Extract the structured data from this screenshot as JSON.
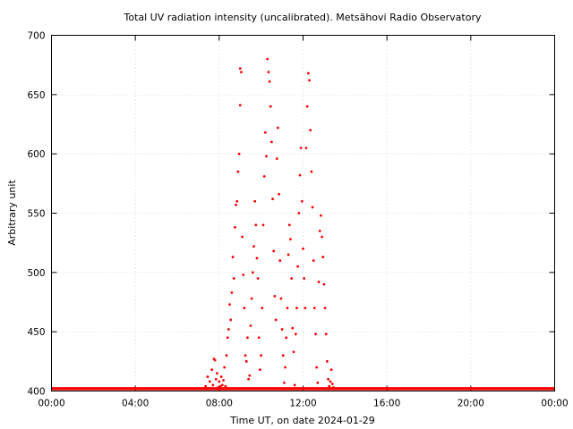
{
  "colors": {
    "series": "#ff0000",
    "axis": "#000000",
    "grid": "#d9d9d9",
    "background": "#ffffff"
  },
  "chart_data": {
    "type": "scatter",
    "title": "Total UV radiation intensity (uncalibrated). Metsähovi Radio Observatory",
    "xlabel": "Time UT, on date 2024-01-29",
    "ylabel": "Arbitrary unit",
    "xlim": [
      0,
      24
    ],
    "ylim": [
      400,
      700
    ],
    "grid": true,
    "legend": "none",
    "x_ticks": [
      0,
      4,
      8,
      12,
      16,
      20,
      24
    ],
    "x_tick_labels": [
      "00:00",
      "04:00",
      "08:00",
      "12:00",
      "16:00",
      "20:00",
      "00:00"
    ],
    "y_ticks": [
      400,
      450,
      500,
      550,
      600,
      650,
      700
    ],
    "y_tick_labels": [
      "400",
      "450",
      "500",
      "550",
      "600",
      "650",
      "700"
    ],
    "baseline": {
      "value": 402,
      "from_hour": 0,
      "to_hour": 24
    },
    "series": [
      {
        "color": "#ff0000",
        "x_unit": "hours UT",
        "points": [
          [
            7.35,
            404
          ],
          [
            7.45,
            412
          ],
          [
            7.55,
            408
          ],
          [
            7.65,
            418
          ],
          [
            7.7,
            405
          ],
          [
            7.75,
            427
          ],
          [
            7.8,
            426
          ],
          [
            7.85,
            410
          ],
          [
            7.9,
            415
          ],
          [
            7.95,
            403
          ],
          [
            8.0,
            408
          ],
          [
            8.05,
            404
          ],
          [
            8.1,
            412
          ],
          [
            8.15,
            405
          ],
          [
            8.2,
            409
          ],
          [
            8.25,
            420
          ],
          [
            8.3,
            404
          ],
          [
            8.35,
            430
          ],
          [
            8.4,
            445
          ],
          [
            8.45,
            452
          ],
          [
            8.5,
            473
          ],
          [
            8.55,
            460
          ],
          [
            8.6,
            483
          ],
          [
            8.65,
            513
          ],
          [
            8.7,
            495
          ],
          [
            8.75,
            538
          ],
          [
            8.8,
            557
          ],
          [
            8.85,
            560
          ],
          [
            8.9,
            585
          ],
          [
            8.95,
            600
          ],
          [
            9.0,
            641
          ],
          [
            9.0,
            672
          ],
          [
            9.05,
            669
          ],
          [
            9.1,
            530
          ],
          [
            9.15,
            498
          ],
          [
            9.2,
            470
          ],
          [
            9.25,
            430
          ],
          [
            9.3,
            425
          ],
          [
            9.35,
            445
          ],
          [
            9.4,
            410
          ],
          [
            9.45,
            413
          ],
          [
            9.5,
            455
          ],
          [
            9.55,
            478
          ],
          [
            9.6,
            500
          ],
          [
            9.65,
            522
          ],
          [
            9.7,
            560
          ],
          [
            9.75,
            540
          ],
          [
            9.8,
            512
          ],
          [
            9.85,
            495
          ],
          [
            9.9,
            445
          ],
          [
            9.95,
            418
          ],
          [
            10.0,
            430
          ],
          [
            10.05,
            470
          ],
          [
            10.1,
            540
          ],
          [
            10.15,
            581
          ],
          [
            10.2,
            618
          ],
          [
            10.25,
            598
          ],
          [
            10.3,
            680
          ],
          [
            10.35,
            669
          ],
          [
            10.4,
            661
          ],
          [
            10.45,
            640
          ],
          [
            10.5,
            610
          ],
          [
            10.55,
            562
          ],
          [
            10.6,
            518
          ],
          [
            10.65,
            480
          ],
          [
            10.7,
            460
          ],
          [
            10.75,
            596
          ],
          [
            10.8,
            622
          ],
          [
            10.85,
            566
          ],
          [
            10.9,
            510
          ],
          [
            10.95,
            478
          ],
          [
            11.0,
            452
          ],
          [
            11.05,
            430
          ],
          [
            11.1,
            407
          ],
          [
            11.15,
            420
          ],
          [
            11.2,
            445
          ],
          [
            11.25,
            470
          ],
          [
            11.3,
            515
          ],
          [
            11.35,
            540
          ],
          [
            11.4,
            528
          ],
          [
            11.45,
            495
          ],
          [
            11.5,
            453
          ],
          [
            11.55,
            433
          ],
          [
            11.6,
            405
          ],
          [
            11.65,
            448
          ],
          [
            11.7,
            470
          ],
          [
            11.75,
            505
          ],
          [
            11.8,
            550
          ],
          [
            11.85,
            582
          ],
          [
            11.9,
            605
          ],
          [
            11.95,
            560
          ],
          [
            12.0,
            520
          ],
          [
            12.05,
            495
          ],
          [
            12.1,
            470
          ],
          [
            12.15,
            605
          ],
          [
            12.2,
            640
          ],
          [
            12.25,
            668
          ],
          [
            12.3,
            662
          ],
          [
            12.35,
            620
          ],
          [
            12.4,
            585
          ],
          [
            12.45,
            555
          ],
          [
            12.5,
            510
          ],
          [
            12.55,
            470
          ],
          [
            12.6,
            448
          ],
          [
            12.65,
            420
          ],
          [
            12.7,
            407
          ],
          [
            12.75,
            492
          ],
          [
            12.8,
            535
          ],
          [
            12.85,
            548
          ],
          [
            12.9,
            530
          ],
          [
            12.95,
            513
          ],
          [
            13.0,
            490
          ],
          [
            13.05,
            470
          ],
          [
            13.1,
            448
          ],
          [
            13.15,
            425
          ],
          [
            13.2,
            410
          ],
          [
            13.25,
            404
          ],
          [
            13.3,
            408
          ],
          [
            13.35,
            418
          ],
          [
            13.4,
            406
          ],
          [
            13.45,
            403
          ],
          [
            13.5,
            402
          ]
        ]
      }
    ]
  }
}
